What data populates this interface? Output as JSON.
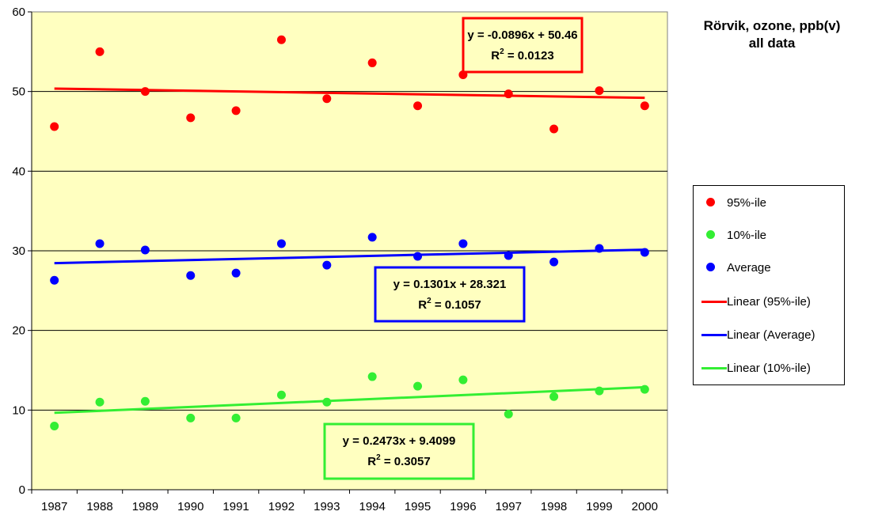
{
  "chart_data": {
    "type": "scatter",
    "title": "Rörvik, ozone, ppb(v)",
    "subtitle": "all data",
    "categories": [
      "1987",
      "1988",
      "1989",
      "1990",
      "1991",
      "1992",
      "1993",
      "1994",
      "1995",
      "1996",
      "1997",
      "1998",
      "1999",
      "2000"
    ],
    "ylim": [
      0,
      60
    ],
    "yticks": [
      "0",
      "10",
      "20",
      "30",
      "40",
      "50",
      "60"
    ],
    "grid": true,
    "plot_background": "#FFFFC0",
    "legend_position": "right",
    "series": [
      {
        "name": "95%-ile",
        "color": "#FF0000",
        "values": [
          45.6,
          55.0,
          50.0,
          46.7,
          47.6,
          56.5,
          49.1,
          53.6,
          48.2,
          52.1,
          49.7,
          45.3,
          50.1,
          48.2
        ]
      },
      {
        "name": "10%-ile",
        "color": "#33EE33",
        "values": [
          8.0,
          11.0,
          11.1,
          9.0,
          9.0,
          11.9,
          11.0,
          14.2,
          13.0,
          13.8,
          9.5,
          11.7,
          12.4,
          12.6
        ]
      },
      {
        "name": "Average",
        "color": "#0000FF",
        "values": [
          26.3,
          30.9,
          30.1,
          26.9,
          27.2,
          30.9,
          28.2,
          31.7,
          29.3,
          30.9,
          29.4,
          28.6,
          30.3,
          29.8
        ]
      }
    ],
    "trendlines": [
      {
        "name": "Linear (95%-ile)",
        "color": "#FF0000",
        "slope": -0.0896,
        "intercept": 50.46,
        "equation": "y = -0.0896x + 50.46",
        "r2_label": "R",
        "r2_value": " = 0.0123"
      },
      {
        "name": "Linear (Average)",
        "color": "#0000FF",
        "slope": 0.1301,
        "intercept": 28.321,
        "equation": "y = 0.1301x + 28.321",
        "r2_label": "R",
        "r2_value": " = 0.1057"
      },
      {
        "name": "Linear (10%-ile)",
        "color": "#33EE33",
        "slope": 0.2473,
        "intercept": 9.4099,
        "equation": "y = 0.2473x + 9.4099",
        "r2_label": "R",
        "r2_value": " = 0.3057"
      }
    ],
    "legend": [
      "95%-ile",
      "10%-ile",
      "Average",
      "Linear (95%-ile)",
      "Linear (Average)",
      "Linear (10%-ile)"
    ]
  }
}
